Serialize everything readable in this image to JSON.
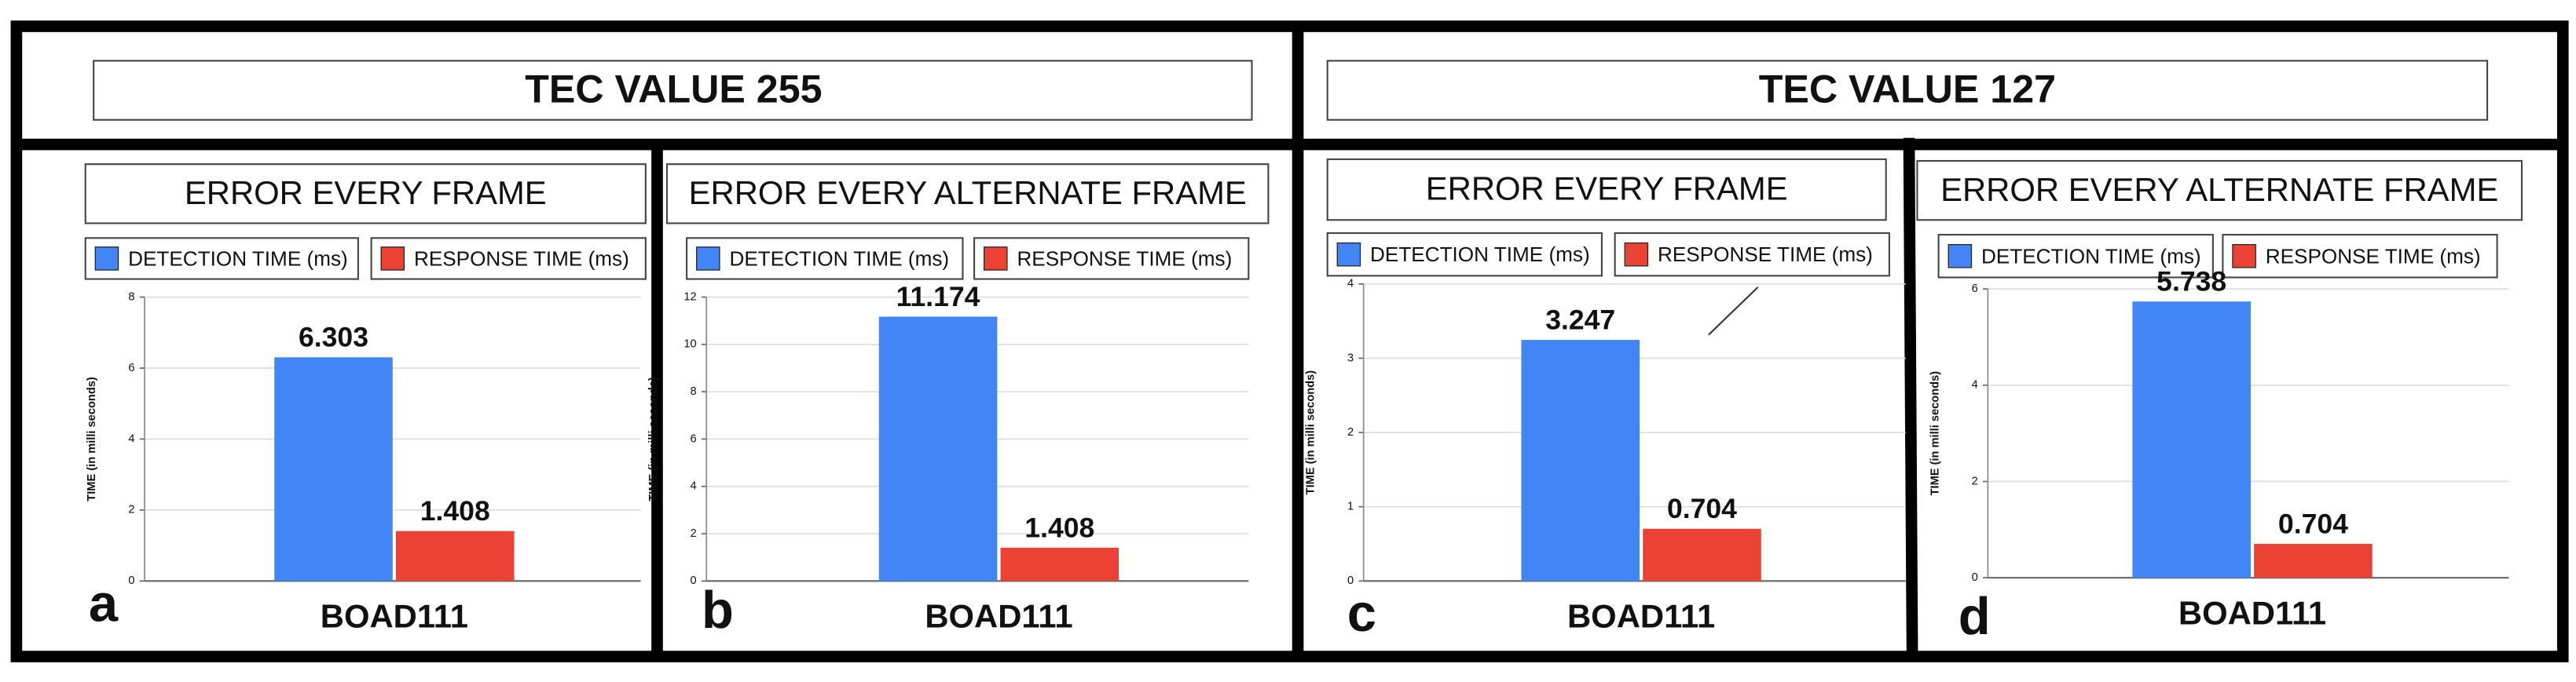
{
  "headers": [
    "TEC VALUE 255",
    "TEC VALUE 127"
  ],
  "chart_data": [
    {
      "type": "bar",
      "panel_label": "a",
      "title": "ERROR EVERY FRAME",
      "y_label": "TIME (in milli seconds)",
      "categories": [
        "BOAD111"
      ],
      "series": [
        {
          "name": "DETECTION TIME (ms)",
          "color": "#4285f4",
          "values": [
            6.303
          ]
        },
        {
          "name": "RESPONSE TIME (ms)",
          "color": "#ea4335",
          "values": [
            1.408
          ]
        }
      ],
      "ylim": [
        0,
        8
      ],
      "yticks": [
        0,
        2,
        4,
        6,
        8
      ],
      "grid": true
    },
    {
      "type": "bar",
      "panel_label": "b",
      "title": "ERROR EVERY ALTERNATE FRAME",
      "y_label": "TIME (in milli seconds)",
      "categories": [
        "BOAD111"
      ],
      "series": [
        {
          "name": "DETECTION TIME (ms)",
          "color": "#4285f4",
          "values": [
            11.174
          ]
        },
        {
          "name": "RESPONSE TIME (ms)",
          "color": "#ea4335",
          "values": [
            1.408
          ]
        }
      ],
      "ylim": [
        0,
        12
      ],
      "yticks": [
        0,
        2,
        4,
        6,
        8,
        10,
        12
      ],
      "grid": true
    },
    {
      "type": "bar",
      "panel_label": "c",
      "title": "ERROR EVERY FRAME",
      "y_label": "TIME (in milli seconds)",
      "categories": [
        "BOAD111"
      ],
      "series": [
        {
          "name": "DETECTION TIME (ms)",
          "color": "#4285f4",
          "values": [
            3.247
          ]
        },
        {
          "name": "RESPONSE TIME (ms)",
          "color": "#ea4335",
          "values": [
            0.704
          ]
        }
      ],
      "ylim": [
        0,
        4
      ],
      "yticks": [
        0,
        1,
        2,
        3,
        4
      ],
      "grid": true
    },
    {
      "type": "bar",
      "panel_label": "d",
      "title": "ERROR EVERY ALTERNATE FRAME",
      "y_label": "TIME (in milli seconds)",
      "categories": [
        "BOAD111"
      ],
      "series": [
        {
          "name": "DETECTION TIME (ms)",
          "color": "#4285f4",
          "values": [
            5.738
          ]
        },
        {
          "name": "RESPONSE TIME (ms)",
          "color": "#ea4335",
          "values": [
            0.704
          ]
        }
      ],
      "ylim": [
        0,
        6
      ],
      "yticks": [
        0,
        2,
        4,
        6
      ],
      "grid": true
    }
  ]
}
